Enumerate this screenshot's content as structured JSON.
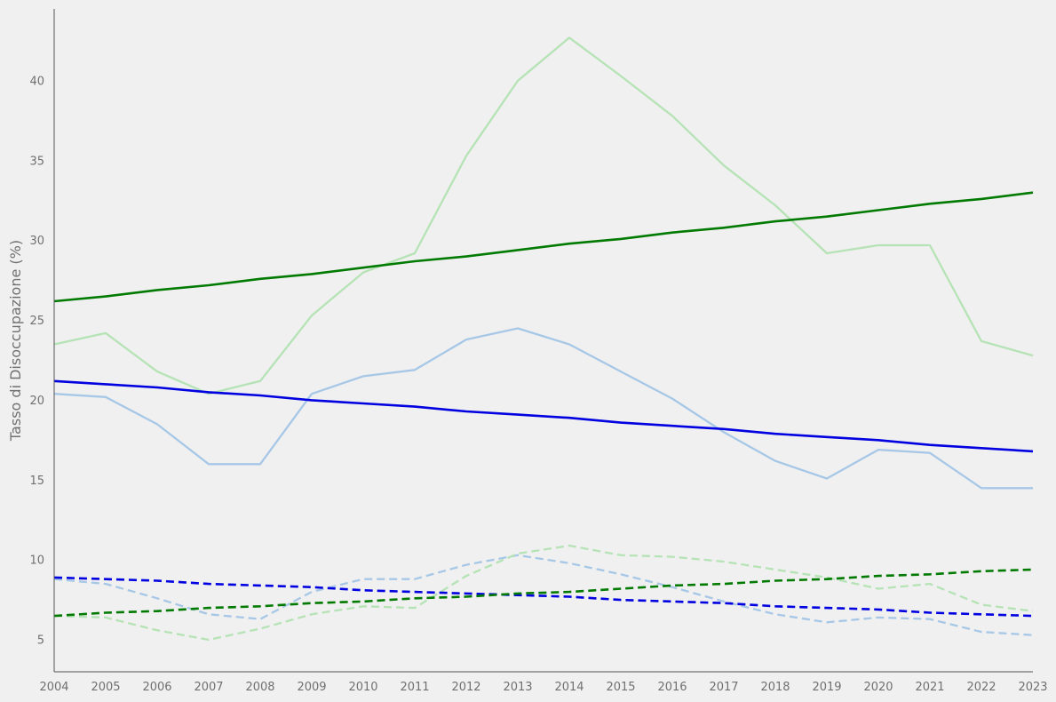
{
  "chart_data": {
    "type": "line",
    "title": "",
    "xlabel": "",
    "ylabel": "Tasso di Disoccupazione (%)",
    "x": [
      2004,
      2005,
      2006,
      2007,
      2008,
      2009,
      2010,
      2011,
      2012,
      2013,
      2014,
      2015,
      2016,
      2017,
      2018,
      2019,
      2020,
      2021,
      2022,
      2023
    ],
    "xlim": [
      2004,
      2023
    ],
    "ylim": [
      3.0,
      44.5
    ],
    "x_ticks": [
      "2004",
      "2005",
      "2006",
      "2007",
      "2008",
      "2009",
      "2010",
      "2011",
      "2012",
      "2013",
      "2014",
      "2015",
      "2016",
      "2017",
      "2018",
      "2019",
      "2020",
      "2021",
      "2022",
      "2023"
    ],
    "y_ticks": [
      "5",
      "10",
      "15",
      "20",
      "25",
      "30",
      "35",
      "40"
    ],
    "grid": false,
    "legend": "none",
    "series": [
      {
        "color": "#a7c7e7",
        "style": "solid",
        "values": [
          20.4,
          20.2,
          18.5,
          16.0,
          16.0,
          20.4,
          21.5,
          21.9,
          23.8,
          24.5,
          23.5,
          21.8,
          20.1,
          18.0,
          16.2,
          15.1,
          16.9,
          16.7,
          14.5,
          14.5
        ]
      },
      {
        "color": "#b5e3b5",
        "style": "solid",
        "values": [
          23.5,
          24.2,
          21.8,
          20.4,
          21.2,
          25.3,
          28.0,
          29.2,
          35.3,
          40.0,
          42.7,
          40.3,
          37.8,
          34.7,
          32.2,
          29.2,
          29.7,
          29.7,
          23.7,
          22.8
        ]
      },
      {
        "color": "#0000e0",
        "style": "solid",
        "values": [
          21.2,
          21.0,
          20.8,
          20.5,
          20.3,
          20.0,
          19.8,
          19.6,
          19.3,
          19.1,
          18.9,
          18.6,
          18.4,
          18.2,
          17.9,
          17.7,
          17.5,
          17.2,
          17.0,
          16.8
        ]
      },
      {
        "color": "#007a00",
        "style": "solid",
        "values": [
          26.2,
          26.5,
          26.9,
          27.2,
          27.6,
          27.9,
          28.3,
          28.7,
          29.0,
          29.4,
          29.8,
          30.1,
          30.5,
          30.8,
          31.2,
          31.5,
          31.9,
          32.3,
          32.6,
          33.0
        ]
      },
      {
        "color": "#a7c7e7",
        "style": "dashed",
        "values": [
          8.8,
          8.5,
          7.6,
          6.6,
          6.3,
          8.0,
          8.8,
          8.8,
          9.7,
          10.3,
          9.8,
          9.1,
          8.3,
          7.4,
          6.6,
          6.1,
          6.4,
          6.3,
          5.5,
          5.3
        ]
      },
      {
        "color": "#b5e3b5",
        "style": "dashed",
        "values": [
          6.5,
          6.4,
          5.6,
          5.0,
          5.7,
          6.6,
          7.1,
          7.0,
          9.0,
          10.4,
          10.9,
          10.3,
          10.2,
          9.9,
          9.4,
          8.9,
          8.2,
          8.5,
          7.2,
          6.8
        ]
      },
      {
        "color": "#0000e0",
        "style": "dashed",
        "values": [
          8.9,
          8.8,
          8.7,
          8.5,
          8.4,
          8.3,
          8.1,
          8.0,
          7.9,
          7.8,
          7.7,
          7.5,
          7.4,
          7.3,
          7.1,
          7.0,
          6.9,
          6.7,
          6.6,
          6.5
        ]
      },
      {
        "color": "#007a00",
        "style": "dashed",
        "values": [
          6.5,
          6.7,
          6.8,
          7.0,
          7.1,
          7.3,
          7.4,
          7.6,
          7.7,
          7.9,
          8.0,
          8.2,
          8.4,
          8.5,
          8.7,
          8.8,
          9.0,
          9.1,
          9.3,
          9.4
        ]
      }
    ]
  }
}
